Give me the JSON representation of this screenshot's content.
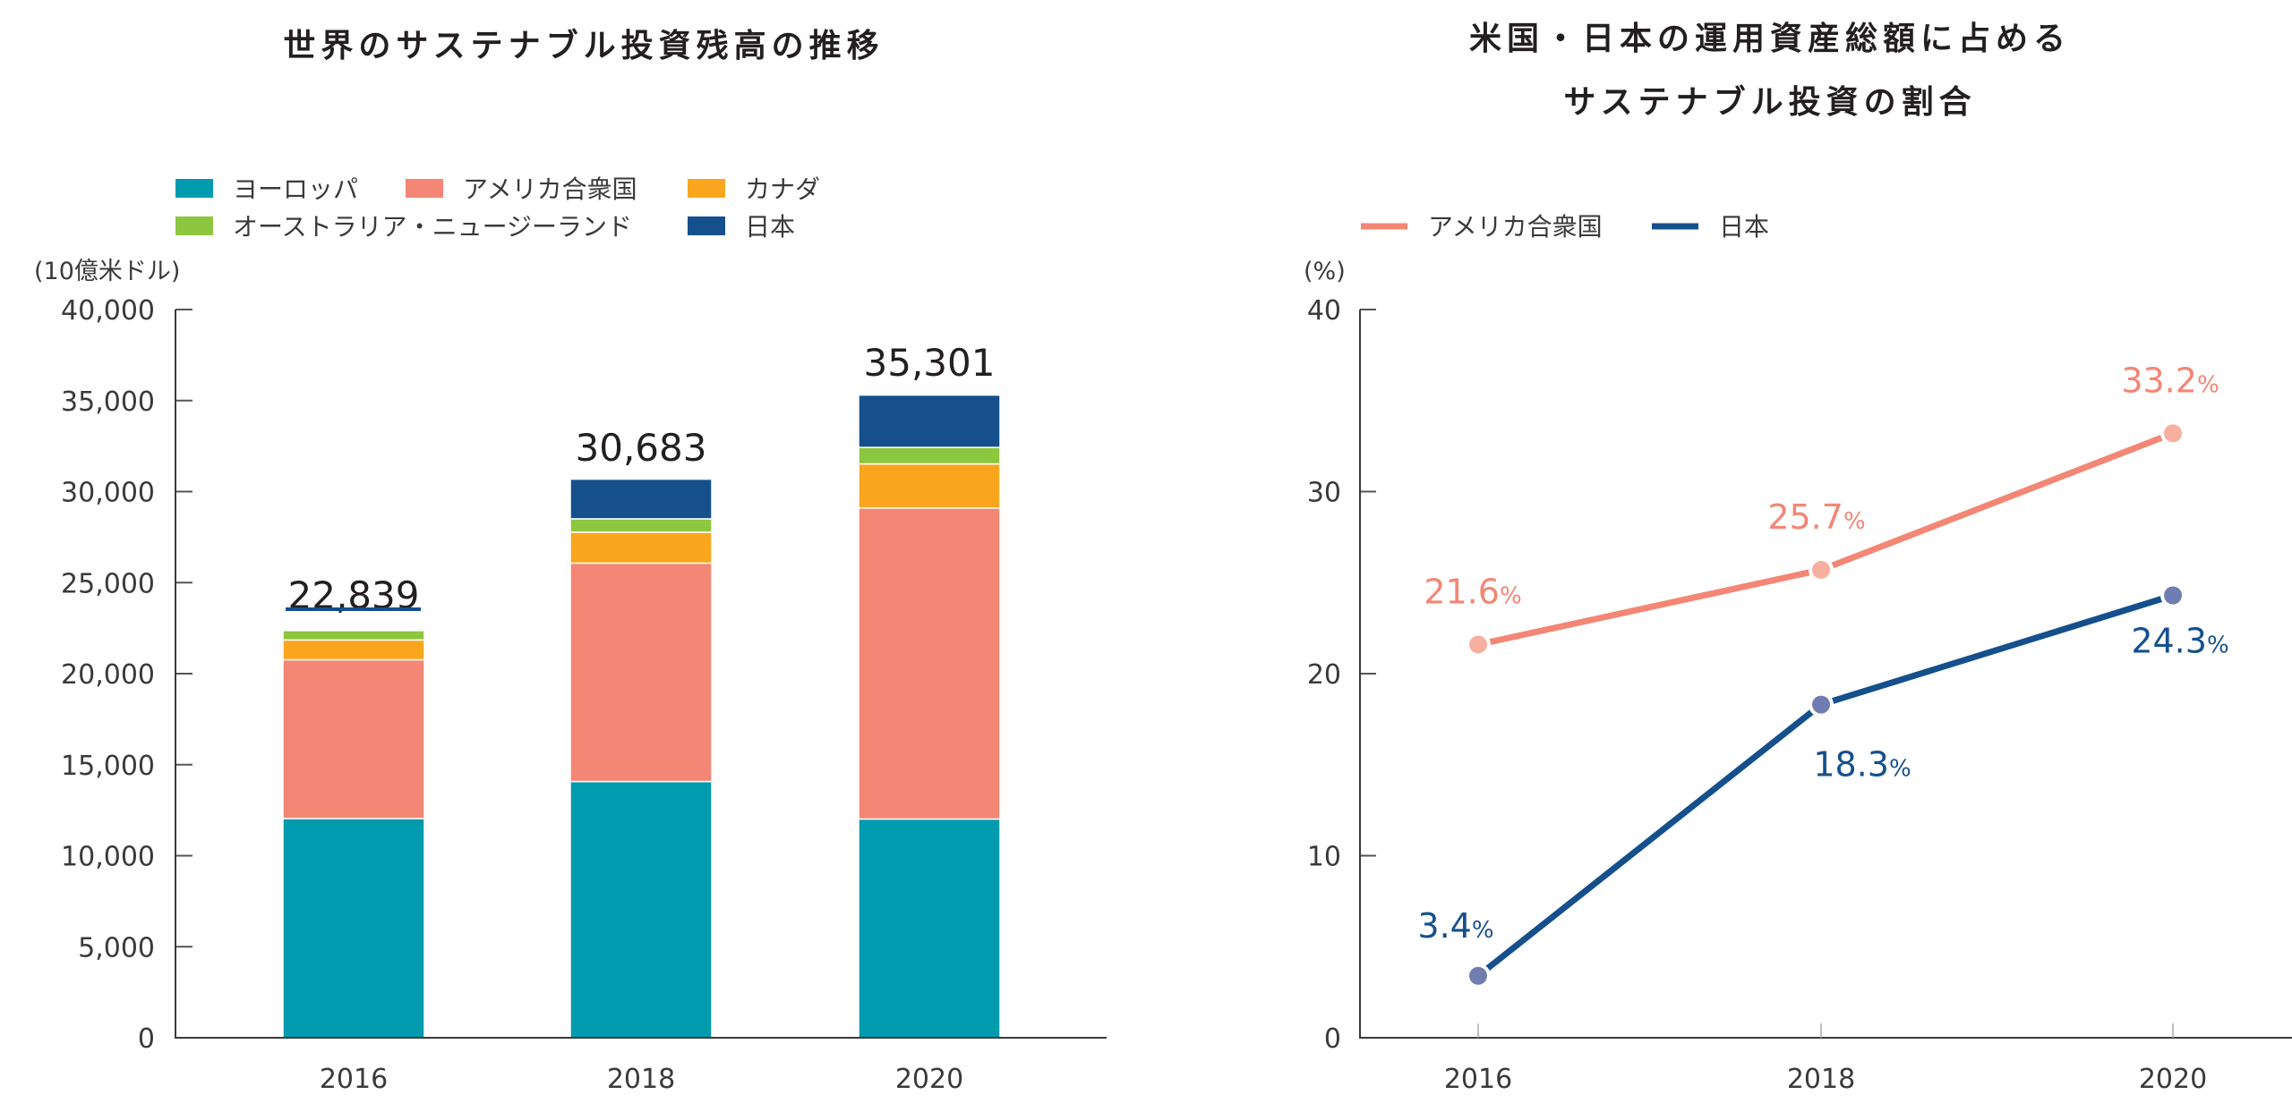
{
  "chart_data": [
    {
      "type": "bar",
      "stacked": true,
      "title": "世界のサステナブル投資残高の推移",
      "ylabel": "(10億米ドル)",
      "xlabel": "",
      "ylim": [
        0,
        40000
      ],
      "yticks": [
        0,
        5000,
        10000,
        15000,
        20000,
        25000,
        30000,
        35000,
        40000
      ],
      "ytick_labels": [
        "0",
        "5,000",
        "10,000",
        "15,000",
        "20,000",
        "25,000",
        "30,000",
        "35,000",
        "40,000"
      ],
      "categories": [
        "2016",
        "2018",
        "2020"
      ],
      "legend_position": "top-left",
      "series": [
        {
          "name": "ヨーロッパ",
          "color": "#009BAE",
          "values": [
            12040,
            14075,
            12017
          ]
        },
        {
          "name": "アメリカ合衆国",
          "color": "#F38675",
          "values": [
            8723,
            11995,
            17081
          ]
        },
        {
          "name": "カナダ",
          "color": "#F9A61E",
          "values": [
            1086,
            1699,
            2423
          ]
        },
        {
          "name": "オーストラリア・ニュージーランド",
          "color": "#8DC63F",
          "values": [
            516,
            734,
            906
          ]
        },
        {
          "name": "日本",
          "color": "#15508C",
          "values": [
            474,
            2180,
            2874
          ]
        }
      ],
      "legend_order": [
        0,
        1,
        2,
        3,
        4
      ],
      "totals": [
        22839,
        30683,
        35301
      ],
      "total_labels": [
        "22,839",
        "30,683",
        "35,301"
      ],
      "grid": false
    },
    {
      "type": "line",
      "title": "米国・日本の運用資産総額に占める\nサステナブル投資の割合",
      "title_lines": [
        "米国・日本の運用資産総額に占める",
        "サステナブル投資の割合"
      ],
      "ylabel": "(%)",
      "xlabel": "",
      "ylim": [
        0,
        40
      ],
      "yticks": [
        0,
        10,
        20,
        30,
        40
      ],
      "ytick_labels": [
        "0",
        "10",
        "20",
        "30",
        "40"
      ],
      "categories": [
        "2016",
        "2018",
        "2020"
      ],
      "legend_position": "top-left",
      "series": [
        {
          "name": "アメリカ合衆国",
          "color": "#F38675",
          "marker_color": "#F7B0A0",
          "values": [
            21.6,
            25.7,
            33.2
          ],
          "labels": [
            "21.6",
            "25.7",
            "33.2"
          ],
          "label_position": "above"
        },
        {
          "name": "日本",
          "color": "#15508C",
          "marker_color": "#6F7DB0",
          "values": [
            3.4,
            18.3,
            24.3
          ],
          "labels": [
            "3.4",
            "18.3",
            "24.3"
          ],
          "label_position": [
            "above",
            "below",
            "below"
          ]
        }
      ],
      "value_suffix": "%",
      "grid": false
    }
  ]
}
